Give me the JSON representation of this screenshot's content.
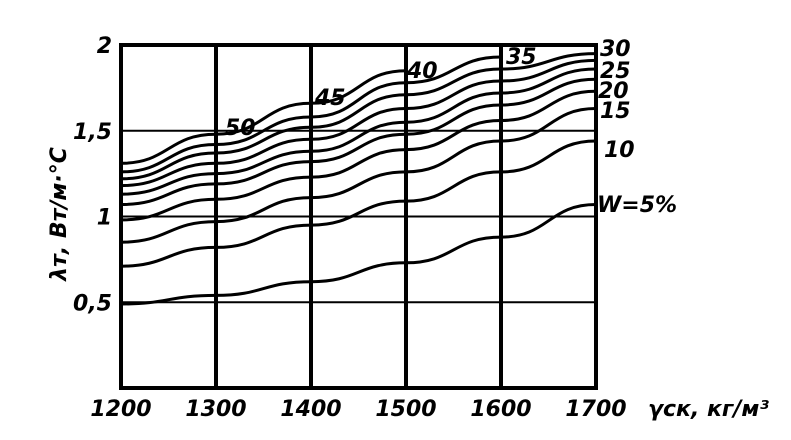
{
  "chart_data": {
    "type": "line",
    "title": "",
    "xlabel": "γск, кг/м³",
    "ylabel": "λт, Вт/м·°С",
    "xlim": [
      1200,
      1700
    ],
    "ylim": [
      0,
      2
    ],
    "x_ticks": [
      {
        "value": 1200,
        "label": "1200"
      },
      {
        "value": 1300,
        "label": "1300"
      },
      {
        "value": 1400,
        "label": "1400"
      },
      {
        "value": 1500,
        "label": "1500"
      },
      {
        "value": 1600,
        "label": "1600"
      },
      {
        "value": 1700,
        "label": "1700"
      }
    ],
    "y_ticks": [
      {
        "value": 0.5,
        "label": "0,5"
      },
      {
        "value": 1,
        "label": "1"
      },
      {
        "value": 1.5,
        "label": "1,5"
      },
      {
        "value": 2,
        "label": "2"
      }
    ],
    "grid": true,
    "series": [
      {
        "name": "W=5%",
        "x": [
          1200,
          1300,
          1400,
          1500,
          1600,
          1700
        ],
        "y": [
          0.49,
          0.54,
          0.62,
          0.73,
          0.88,
          1.07
        ]
      },
      {
        "name": "10",
        "x": [
          1200,
          1300,
          1400,
          1500,
          1600,
          1700
        ],
        "y": [
          0.71,
          0.82,
          0.95,
          1.09,
          1.26,
          1.44
        ]
      },
      {
        "name": "15",
        "x": [
          1200,
          1300,
          1400,
          1500,
          1600,
          1700
        ],
        "y": [
          0.85,
          0.97,
          1.11,
          1.26,
          1.44,
          1.63
        ]
      },
      {
        "name": "20",
        "x": [
          1200,
          1300,
          1400,
          1500,
          1600,
          1700
        ],
        "y": [
          0.98,
          1.1,
          1.23,
          1.39,
          1.56,
          1.73
        ]
      },
      {
        "name": "25",
        "x": [
          1200,
          1300,
          1400,
          1500,
          1600,
          1700
        ],
        "y": [
          1.07,
          1.19,
          1.32,
          1.48,
          1.65,
          1.8
        ]
      },
      {
        "name": "30",
        "x": [
          1200,
          1300,
          1400,
          1500,
          1600,
          1700
        ],
        "y": [
          1.13,
          1.25,
          1.38,
          1.55,
          1.72,
          1.86
        ]
      },
      {
        "name": "35",
        "x": [
          1200,
          1300,
          1400,
          1500,
          1600,
          1700
        ],
        "y": [
          1.18,
          1.31,
          1.45,
          1.63,
          1.79,
          1.91
        ]
      },
      {
        "name": "40",
        "x": [
          1200,
          1300,
          1400,
          1500,
          1600,
          1700
        ],
        "y": [
          1.22,
          1.37,
          1.52,
          1.71,
          1.86,
          1.95
        ]
      },
      {
        "name": "45",
        "x": [
          1200,
          1300,
          1400,
          1500,
          1600
        ],
        "y": [
          1.26,
          1.42,
          1.58,
          1.78,
          1.93
        ]
      },
      {
        "name": "50",
        "x": [
          1200,
          1300,
          1400,
          1500
        ],
        "y": [
          1.31,
          1.48,
          1.66,
          1.85
        ]
      }
    ]
  }
}
